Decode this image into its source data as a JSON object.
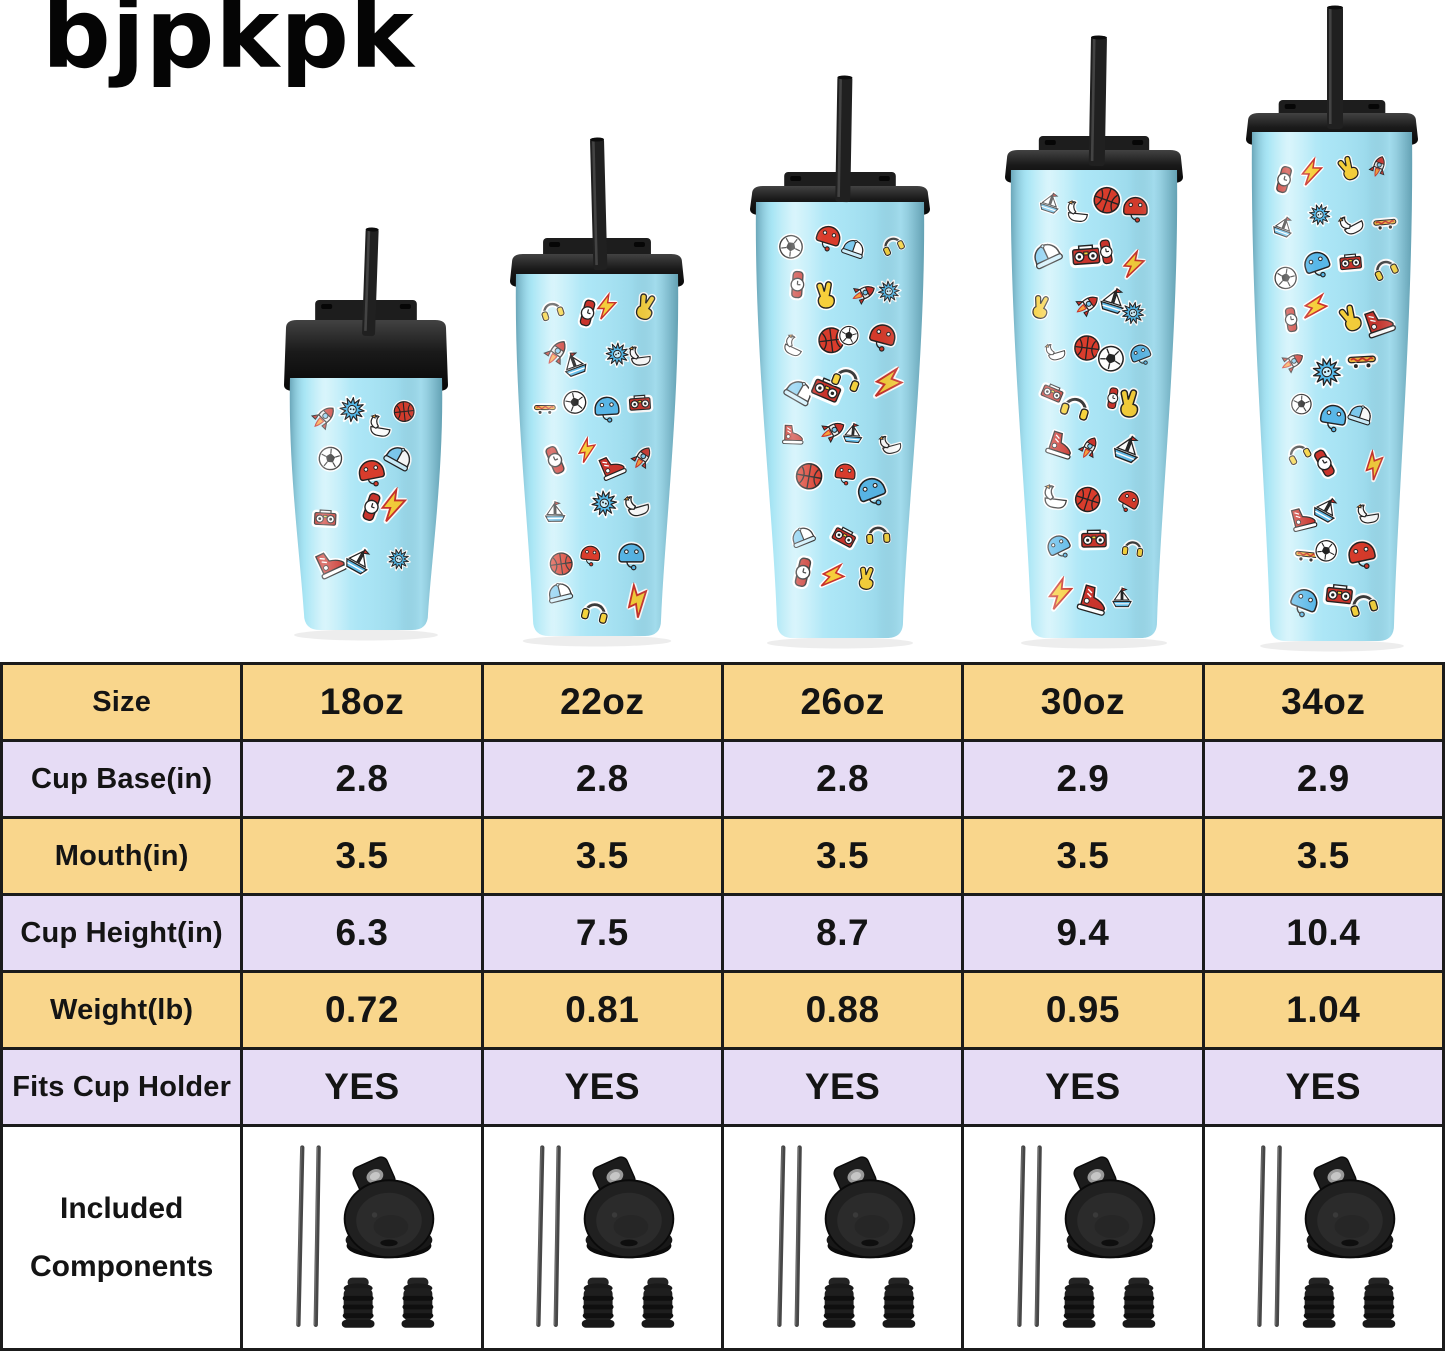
{
  "brand": {
    "logo_text": "bjpkpk"
  },
  "hero": {
    "description": "Five light-blue insulated tumblers with black straw lids, covered in doodle stickers, lined up smallest to largest",
    "sizes": [
      "18oz",
      "22oz",
      "26oz",
      "30oz",
      "34oz"
    ],
    "sticker_icons": [
      "basketball",
      "soccer-ball",
      "red-helmet",
      "blue-helmet",
      "baseball-cap",
      "boombox",
      "headphones",
      "watch",
      "lightning-bolt",
      "peace-hand",
      "sneaker",
      "rocket",
      "sailboat",
      "starburst",
      "swan-float",
      "skateboard"
    ]
  },
  "spec_table": {
    "rows": [
      {
        "label": "Size",
        "values": [
          "18oz",
          "22oz",
          "26oz",
          "30oz",
          "34oz"
        ]
      },
      {
        "label": "Cup Base(in)",
        "values": [
          "2.8",
          "2.8",
          "2.8",
          "2.9",
          "2.9"
        ]
      },
      {
        "label": "Mouth(in)",
        "values": [
          "3.5",
          "3.5",
          "3.5",
          "3.5",
          "3.5"
        ]
      },
      {
        "label": "Cup Height(in)",
        "values": [
          "6.3",
          "7.5",
          "8.7",
          "9.4",
          "10.4"
        ]
      },
      {
        "label": "Weight(lb)",
        "values": [
          "0.72",
          "0.81",
          "0.88",
          "0.95",
          "1.04"
        ]
      },
      {
        "label": "Fits Cup Holder",
        "values": [
          "YES",
          "YES",
          "YES",
          "YES",
          "YES"
        ]
      }
    ],
    "components_row": {
      "label_lines": [
        "Included",
        "Components"
      ],
      "per_size_items": [
        "two metal straws",
        "flip-top lid",
        "two straw caps"
      ]
    }
  },
  "colors": {
    "row_yellow": "#F9D68C",
    "row_lavender": "#E6DCF5",
    "table_border": "#1B1B1B",
    "cup_blue": "#A4E2F3",
    "lid_black": "#1B1B1B"
  }
}
